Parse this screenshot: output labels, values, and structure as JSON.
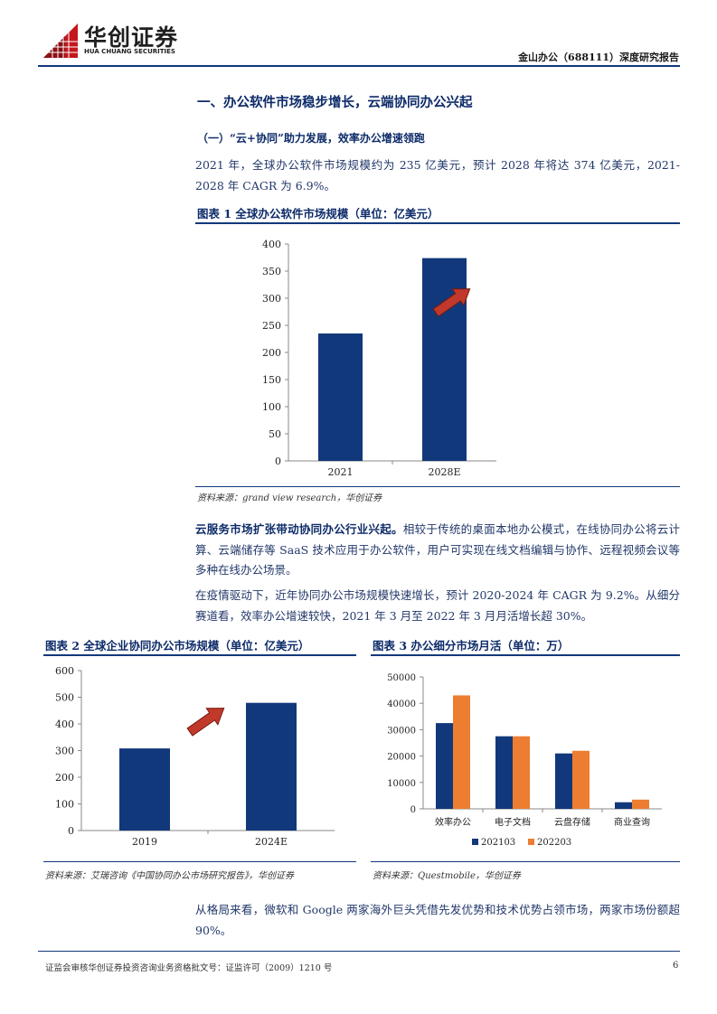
{
  "header": {
    "logo_cn": "华创证券",
    "logo_en": "HUA CHUANG SECURITIES",
    "report_title": "金山办公（688111）深度研究报告"
  },
  "section_heading": "一、办公软件市场稳步增长，云端协同办公兴起",
  "sub_heading": "（一）“云+协同”助力发展，效率办公增速领跑",
  "para1": "2021 年，全球办公软件市场规模约为 235 亿美元，预计 2028 年将达 374 亿美元，2021-2028 年 CAGR 为 6.9%。",
  "fig1": {
    "title": "图表 1    全球办公软件市场规模（单位：亿美元）",
    "source": "资料来源：grand view research，华创证券"
  },
  "para2_bold": "云服务市场扩张带动协同办公行业兴起。",
  "para2_rest": "相较于传统的桌面本地办公模式，在线协同办公将云计算、云端储存等 SaaS 技术应用于办公软件，用户可实现在线文档编辑与协作、远程视频会议等多种在线办公场景。",
  "para3": "在疫情驱动下，近年协同办公市场规模快速增长，预计 2020-2024 年 CAGR 为 9.2%。从细分赛道看，效率办公增速较快，2021 年 3 月至 2022 年 3 月月活增长超 30%。",
  "fig2": {
    "title": "图表 2    全球企业协同办公市场规模（单位：亿美元）",
    "source": "资料来源：艾瑞咨询《中国协同办公市场研究报告》，华创证券"
  },
  "fig3": {
    "title": "图表 3    办公细分市场月活（单位：万）",
    "source": "资料来源：Questmobile，华创证券"
  },
  "para4": "从格局来看，微软和 Google 两家海外巨头凭借先发优势和技术优势占领市场，两家市场份额超 90%。",
  "footer": {
    "text": "证监会审核华创证券投资咨询业务资格批文号：证监许可（2009）1210 号",
    "page": "6"
  },
  "colors": {
    "navy": "#11387a",
    "orange": "#ed7d31",
    "arrow": "#c0392b"
  },
  "chart_data": [
    {
      "type": "bar",
      "categories": [
        "2021",
        "2028E"
      ],
      "values": [
        235,
        374
      ],
      "ylim": [
        0,
        400
      ],
      "yticks": [
        0,
        50,
        100,
        150,
        200,
        250,
        300,
        350,
        400
      ],
      "grid": false
    },
    {
      "type": "bar",
      "categories": [
        "2019",
        "2024E"
      ],
      "values": [
        308,
        479
      ],
      "ylim": [
        0,
        600
      ],
      "yticks": [
        0,
        100,
        200,
        300,
        400,
        500,
        600
      ],
      "grid": false
    },
    {
      "type": "bar",
      "categories": [
        "效率办公",
        "电子文档",
        "云盘存储",
        "商业查询"
      ],
      "series": [
        {
          "name": "202103",
          "values": [
            32500,
            27500,
            21000,
            2500
          ]
        },
        {
          "name": "202203",
          "values": [
            43000,
            27500,
            22000,
            3500
          ]
        }
      ],
      "ylim": [
        0,
        50000
      ],
      "yticks": [
        0,
        10000,
        20000,
        30000,
        40000,
        50000
      ],
      "legend": "bottom",
      "grid": false
    }
  ]
}
